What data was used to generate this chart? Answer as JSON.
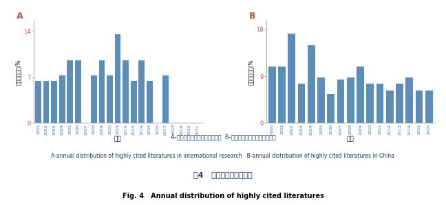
{
  "chart_A": {
    "label": "A",
    "years": [
      "2001",
      "2002",
      "2003",
      "2004",
      "2005",
      "2006",
      "2007",
      "2008",
      "2009",
      "2010",
      "2011",
      "2012",
      "2013",
      "2014",
      "2015",
      "2016",
      "2017",
      "2018",
      "2019",
      "2020",
      "2021"
    ],
    "values": [
      6.4,
      6.4,
      6.4,
      7.3,
      9.6,
      9.6,
      0,
      7.3,
      9.6,
      7.3,
      13.6,
      9.6,
      6.4,
      9.6,
      6.4,
      0,
      7.3,
      0,
      0,
      0,
      0
    ],
    "ylabel": "被引文献占比/%",
    "xlabel": "年份",
    "yticks": [
      0,
      7,
      14
    ],
    "ylim": [
      0,
      15.5
    ],
    "bar_color": "#5B8DB8"
  },
  "chart_B": {
    "label": "B",
    "years": [
      "2000",
      "2001",
      "2002",
      "2003",
      "2004",
      "2005",
      "2006",
      "2007",
      "2008",
      "2009",
      "2010",
      "2011",
      "2012",
      "2013",
      "2014",
      "2015",
      "2016"
    ],
    "values": [
      10.8,
      10.8,
      17.2,
      7.5,
      15.0,
      8.8,
      5.6,
      8.3,
      8.8,
      10.8,
      7.5,
      7.5,
      6.2,
      7.5,
      8.8,
      6.2,
      6.2
    ],
    "ylabel": "被引文献占比/%",
    "xlabel": "年份",
    "yticks": [
      0,
      9,
      18
    ],
    "ylim": [
      0,
      19.5
    ],
    "bar_color": "#5B8DB8"
  },
  "caption_cn_1": "A-国际研究高被引文献年度分布  B-国内研究高被引文献年度分布",
  "caption_en_1": "A-annual distribution of highly cited literatures in international research   B-annual distribution of highly cited literatures in China",
  "caption_cn_2": "图4   高被引文献年度分布",
  "caption_en_2": "Fig. 4   Annual distribution of highly cited literatures",
  "label_color": "#C0504D",
  "caption_color_cn": "#1F3864",
  "caption_color_en": "#17375E"
}
